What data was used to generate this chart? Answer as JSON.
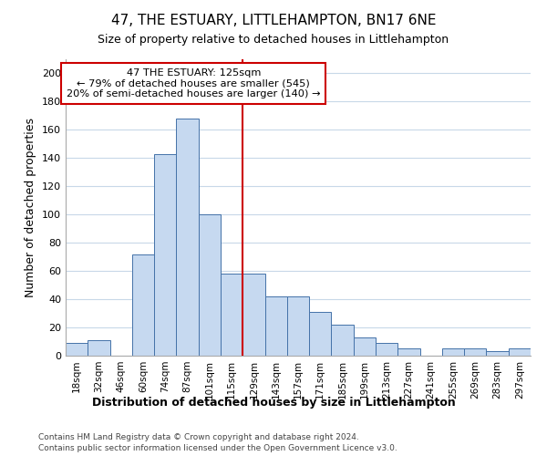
{
  "title": "47, THE ESTUARY, LITTLEHAMPTON, BN17 6NE",
  "subtitle": "Size of property relative to detached houses in Littlehampton",
  "xlabel": "Distribution of detached houses by size in Littlehampton",
  "ylabel": "Number of detached properties",
  "bar_labels": [
    "18sqm",
    "32sqm",
    "46sqm",
    "60sqm",
    "74sqm",
    "87sqm",
    "101sqm",
    "115sqm",
    "129sqm",
    "143sqm",
    "157sqm",
    "171sqm",
    "185sqm",
    "199sqm",
    "213sqm",
    "227sqm",
    "241sqm",
    "255sqm",
    "269sqm",
    "283sqm",
    "297sqm"
  ],
  "bar_heights": [
    9,
    11,
    0,
    72,
    143,
    168,
    100,
    58,
    58,
    42,
    42,
    31,
    22,
    13,
    9,
    5,
    0,
    5,
    5,
    3,
    5
  ],
  "bar_color": "#c6d9f0",
  "bar_edge_color": "#4472a8",
  "vline_x": 7.5,
  "vline_color": "#cc0000",
  "annotation_title": "47 THE ESTUARY: 125sqm",
  "annotation_line1": "← 79% of detached houses are smaller (545)",
  "annotation_line2": "20% of semi-detached houses are larger (140) →",
  "annotation_box_color": "#ffffff",
  "annotation_box_edgecolor": "#cc0000",
  "ylim": [
    0,
    210
  ],
  "yticks": [
    0,
    20,
    40,
    60,
    80,
    100,
    120,
    140,
    160,
    180,
    200
  ],
  "footer1": "Contains HM Land Registry data © Crown copyright and database right 2024.",
  "footer2": "Contains public sector information licensed under the Open Government Licence v3.0.",
  "background_color": "#ffffff",
  "grid_color": "#c8d8e8"
}
